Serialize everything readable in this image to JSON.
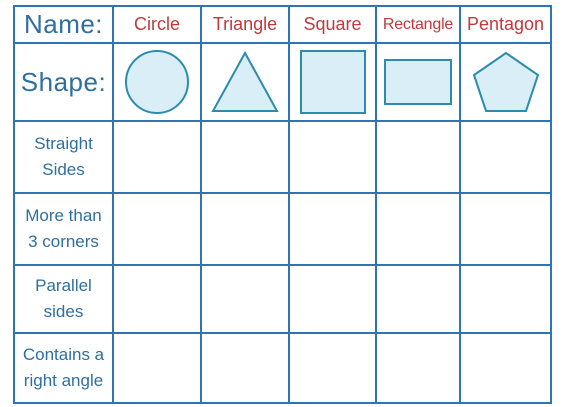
{
  "header": {
    "name_label": "Name:",
    "shape_label": "Shape:"
  },
  "shapes": [
    {
      "name": "Circle",
      "icon": "circle-icon"
    },
    {
      "name": "Triangle",
      "icon": "triangle-icon"
    },
    {
      "name": "Square",
      "icon": "square-icon"
    },
    {
      "name": "Rectangle",
      "icon": "rectangle-icon"
    },
    {
      "name": "Pentagon",
      "icon": "pentagon-icon"
    }
  ],
  "properties": [
    {
      "line1": "Straight",
      "line2": "Sides"
    },
    {
      "line1": "More than",
      "line2": "3 corners"
    },
    {
      "line1": "Parallel",
      "line2": "sides"
    },
    {
      "line1": "Contains a",
      "line2": "right angle"
    }
  ],
  "colors": {
    "grid": "#2e75b6",
    "label_blue": "#2f6f9f",
    "shape_name_red": "#c0393b",
    "shape_fill": "#daeef7",
    "shape_stroke": "#2b8cae"
  }
}
